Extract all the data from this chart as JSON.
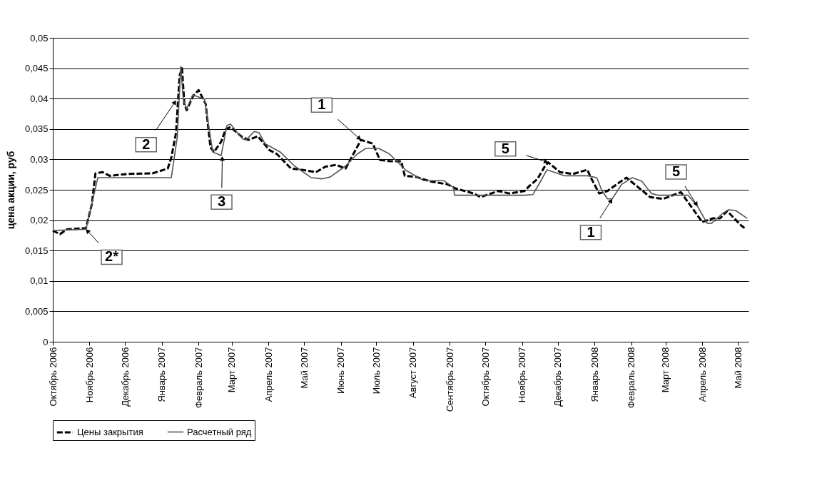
{
  "chart_data": {
    "type": "line",
    "ylabel": "цена акции, руб",
    "xlim": [
      "2006-10-01",
      "2008-05-10"
    ],
    "xticks": [
      {
        "value": "2006-10-01",
        "label": "Октябрь 2006"
      },
      {
        "value": "2006-11-01",
        "label": "Ноябрь 2006"
      },
      {
        "value": "2006-12-01",
        "label": "Декабрь 2006"
      },
      {
        "value": "2007-01-01",
        "label": "Январь 2007"
      },
      {
        "value": "2007-02-01",
        "label": "Февраль 2007"
      },
      {
        "value": "2007-03-01",
        "label": "Март 2007"
      },
      {
        "value": "2007-04-01",
        "label": "Апрель 2007"
      },
      {
        "value": "2007-05-01",
        "label": "Май 2007"
      },
      {
        "value": "2007-06-01",
        "label": "Июнь 2007"
      },
      {
        "value": "2007-07-01",
        "label": "Июль 2007"
      },
      {
        "value": "2007-08-01",
        "label": "Август 2007"
      },
      {
        "value": "2007-09-01",
        "label": "Сентябрь 2007"
      },
      {
        "value": "2007-10-01",
        "label": "Октябрь 2007"
      },
      {
        "value": "2007-11-01",
        "label": "Ноябрь 2007"
      },
      {
        "value": "2007-12-01",
        "label": "Декабрь 2007"
      },
      {
        "value": "2008-01-01",
        "label": "Январь 2008"
      },
      {
        "value": "2008-02-01",
        "label": "Февраль 2008"
      },
      {
        "value": "2008-03-01",
        "label": "Март 2008"
      },
      {
        "value": "2008-04-01",
        "label": "Апрель 2008"
      },
      {
        "value": "2008-05-01",
        "label": "Май 2008"
      }
    ],
    "ylim": [
      0,
      0.05
    ],
    "yticks": [
      {
        "value": 0,
        "label": "0"
      },
      {
        "value": 0.005,
        "label": "0,005"
      },
      {
        "value": 0.01,
        "label": "0,01"
      },
      {
        "value": 0.015,
        "label": "0,015"
      },
      {
        "value": 0.02,
        "label": "0,02"
      },
      {
        "value": 0.025,
        "label": "0,025"
      },
      {
        "value": 0.03,
        "label": "0,03"
      },
      {
        "value": 0.035,
        "label": "0,035"
      },
      {
        "value": 0.04,
        "label": "0,04"
      },
      {
        "value": 0.045,
        "label": "0,045"
      },
      {
        "value": 0.05,
        "label": "0,05"
      }
    ],
    "grid": "y",
    "legend": "bottom",
    "marker": "none",
    "series": [
      {
        "name": "Цены закрытия",
        "color": "#000000",
        "line_style": "dashed",
        "x": [
          "2006-10-01",
          "2006-10-07",
          "2006-10-13",
          "2006-10-29",
          "2006-11-03",
          "2006-11-06",
          "2006-11-12",
          "2006-11-18",
          "2006-12-03",
          "2006-12-24",
          "2007-01-06",
          "2007-01-09",
          "2007-01-13",
          "2007-01-16",
          "2007-01-18",
          "2007-01-20",
          "2007-01-22",
          "2007-01-27",
          "2007-02-01",
          "2007-02-07",
          "2007-02-11",
          "2007-02-14",
          "2007-02-20",
          "2007-02-24",
          "2007-02-28",
          "2007-03-09",
          "2007-03-15",
          "2007-03-23",
          "2007-04-02",
          "2007-04-08",
          "2007-04-20",
          "2007-04-29",
          "2007-05-11",
          "2007-05-19",
          "2007-05-28",
          "2007-06-05",
          "2007-06-10",
          "2007-06-18",
          "2007-06-28",
          "2007-07-04",
          "2007-07-13",
          "2007-07-22",
          "2007-07-25",
          "2007-08-04",
          "2007-08-15",
          "2007-08-30",
          "2007-09-06",
          "2007-09-21",
          "2007-09-27",
          "2007-10-12",
          "2007-10-21",
          "2007-11-03",
          "2007-11-07",
          "2007-11-14",
          "2007-11-20",
          "2007-11-23",
          "2007-12-03",
          "2007-12-14",
          "2007-12-26",
          "2007-12-29",
          "2008-01-05",
          "2008-01-12",
          "2008-01-22",
          "2008-01-28",
          "2008-02-17",
          "2008-02-28",
          "2008-03-14",
          "2008-03-22",
          "2008-04-01",
          "2008-04-10",
          "2008-04-16",
          "2008-04-22",
          "2008-05-04",
          "2008-05-08"
        ],
        "values": [
          0.0183,
          0.0177,
          0.0185,
          0.0187,
          0.0227,
          0.0277,
          0.0279,
          0.0273,
          0.0276,
          0.0277,
          0.0285,
          0.0303,
          0.0344,
          0.0438,
          0.045,
          0.0391,
          0.0381,
          0.0403,
          0.0414,
          0.0391,
          0.032,
          0.0312,
          0.0329,
          0.035,
          0.0353,
          0.0338,
          0.0332,
          0.0338,
          0.0315,
          0.0309,
          0.0285,
          0.0283,
          0.0279,
          0.0288,
          0.0291,
          0.0285,
          0.0303,
          0.0332,
          0.0326,
          0.0299,
          0.0297,
          0.0297,
          0.0273,
          0.0271,
          0.0264,
          0.0259,
          0.0252,
          0.0244,
          0.0238,
          0.0248,
          0.0244,
          0.0248,
          0.0256,
          0.0268,
          0.0288,
          0.0295,
          0.0279,
          0.0276,
          0.0283,
          0.027,
          0.0244,
          0.0248,
          0.0262,
          0.027,
          0.0238,
          0.0235,
          0.0246,
          0.0224,
          0.0197,
          0.0203,
          0.0203,
          0.0215,
          0.0191,
          0.0185
        ]
      },
      {
        "name": "Расчетный ряд",
        "color": "#555555",
        "line_style": "solid",
        "x": [
          "2006-10-01",
          "2006-10-29",
          "2006-11-08",
          "2007-01-09",
          "2007-01-14",
          "2007-01-17",
          "2007-01-19",
          "2007-01-22",
          "2007-01-27",
          "2007-02-06",
          "2007-02-13",
          "2007-02-17",
          "2007-02-20",
          "2007-02-25",
          "2007-02-28",
          "2007-03-10",
          "2007-03-13",
          "2007-03-20",
          "2007-03-24",
          "2007-03-29",
          "2007-04-11",
          "2007-04-23",
          "2007-05-07",
          "2007-05-16",
          "2007-05-23",
          "2007-06-05",
          "2007-06-15",
          "2007-06-22",
          "2007-07-03",
          "2007-07-12",
          "2007-07-26",
          "2007-08-10",
          "2007-08-27",
          "2007-09-04",
          "2007-09-05",
          "2007-11-03",
          "2007-11-10",
          "2007-11-16",
          "2007-11-22",
          "2007-12-07",
          "2007-12-26",
          "2008-01-03",
          "2008-01-07",
          "2008-01-12",
          "2008-01-16",
          "2008-01-24",
          "2008-02-02",
          "2008-02-10",
          "2008-02-18",
          "2008-02-24",
          "2008-03-20",
          "2008-03-28",
          "2008-04-05",
          "2008-04-09",
          "2008-04-18",
          "2008-04-23",
          "2008-04-29",
          "2008-05-09"
        ],
        "values": [
          0.0183,
          0.0185,
          0.027,
          0.027,
          0.0336,
          0.0453,
          0.0399,
          0.0383,
          0.0406,
          0.0399,
          0.0312,
          0.0309,
          0.0306,
          0.0356,
          0.0358,
          0.0334,
          0.0332,
          0.0346,
          0.0344,
          0.0326,
          0.0312,
          0.0289,
          0.027,
          0.0268,
          0.0271,
          0.0289,
          0.0309,
          0.0318,
          0.0318,
          0.0309,
          0.0282,
          0.0265,
          0.0265,
          0.0254,
          0.0241,
          0.0241,
          0.0242,
          0.0262,
          0.0283,
          0.0273,
          0.0273,
          0.027,
          0.025,
          0.0235,
          0.0235,
          0.0259,
          0.027,
          0.0264,
          0.0244,
          0.0241,
          0.0241,
          0.0223,
          0.0195,
          0.0195,
          0.0211,
          0.0217,
          0.0216,
          0.0203
        ]
      }
    ],
    "annotations": [
      {
        "text": "2*",
        "x": "2006-10-29",
        "y": 0.0185
      },
      {
        "text": "2",
        "x": "2007-01-13",
        "y": 0.0397
      },
      {
        "text": "3",
        "x": "2007-02-21",
        "y": 0.0305
      },
      {
        "text": "1",
        "x": "2007-06-18",
        "y": 0.0332
      },
      {
        "text": "5",
        "x": "2007-11-23",
        "y": 0.0295
      },
      {
        "text": "1",
        "x": "2008-01-16",
        "y": 0.0235
      },
      {
        "text": "5",
        "x": "2008-03-28",
        "y": 0.0223
      }
    ]
  }
}
